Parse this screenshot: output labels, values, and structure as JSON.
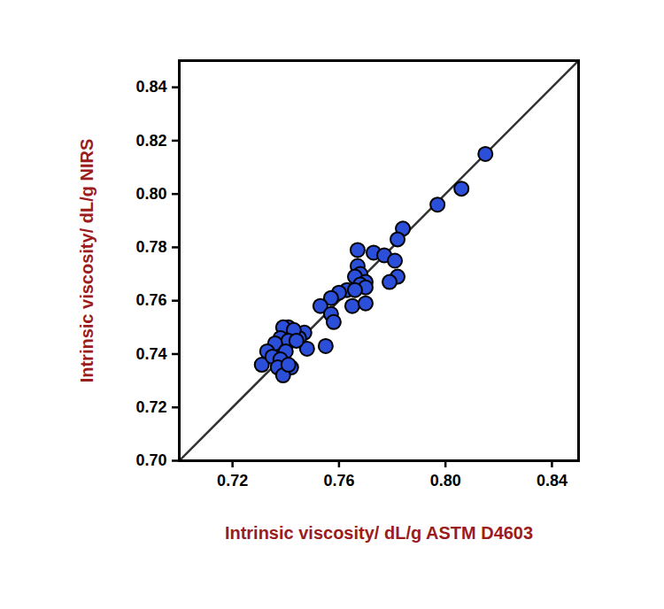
{
  "chart_data": {
    "type": "scatter",
    "x_label": "Intrinsic viscosity/ dL/g ASTM D4603",
    "y_label": "Intrinsic viscosity/ dL/g NIRS",
    "xlim": [
      0.7,
      0.85
    ],
    "ylim": [
      0.7,
      0.85
    ],
    "xticks": [
      0.72,
      0.76,
      {
        "value": 0.8,
        "label": "0.80"
      },
      0.84
    ],
    "yticks": [
      {
        "value": 0.7,
        "label": "0.70"
      },
      0.72,
      0.74,
      0.76,
      0.78,
      {
        "value": 0.8,
        "label": "0.80"
      },
      0.82,
      0.84
    ],
    "series": [
      {
        "type": "line",
        "color": "#333333",
        "line_style": "solid",
        "x": [
          0.7,
          0.85
        ],
        "values": [
          0.7,
          0.85
        ]
      },
      {
        "type": "scatter",
        "color": "#2b4fd8",
        "marker": "circle",
        "x": [
          0.815,
          0.806,
          0.797,
          0.784,
          0.782,
          0.773,
          0.777,
          0.781,
          0.782,
          0.779,
          0.767,
          0.767,
          0.768,
          0.766,
          0.77,
          0.768,
          0.77,
          0.763,
          0.766,
          0.76,
          0.765,
          0.77,
          0.757,
          0.753,
          0.757,
          0.758,
          0.755,
          0.747,
          0.745,
          0.748,
          0.741,
          0.739,
          0.743,
          0.738,
          0.741,
          0.744,
          0.736,
          0.74,
          0.733,
          0.731,
          0.735,
          0.738,
          0.737,
          0.742,
          0.739,
          0.741
        ],
        "values": [
          0.815,
          0.802,
          0.796,
          0.787,
          0.783,
          0.778,
          0.777,
          0.775,
          0.769,
          0.767,
          0.779,
          0.773,
          0.77,
          0.769,
          0.767,
          0.766,
          0.765,
          0.764,
          0.764,
          0.763,
          0.758,
          0.759,
          0.761,
          0.758,
          0.755,
          0.752,
          0.743,
          0.748,
          0.746,
          0.742,
          0.75,
          0.75,
          0.749,
          0.746,
          0.745,
          0.745,
          0.744,
          0.741,
          0.741,
          0.736,
          0.739,
          0.738,
          0.735,
          0.735,
          0.732,
          0.736
        ]
      }
    ]
  }
}
